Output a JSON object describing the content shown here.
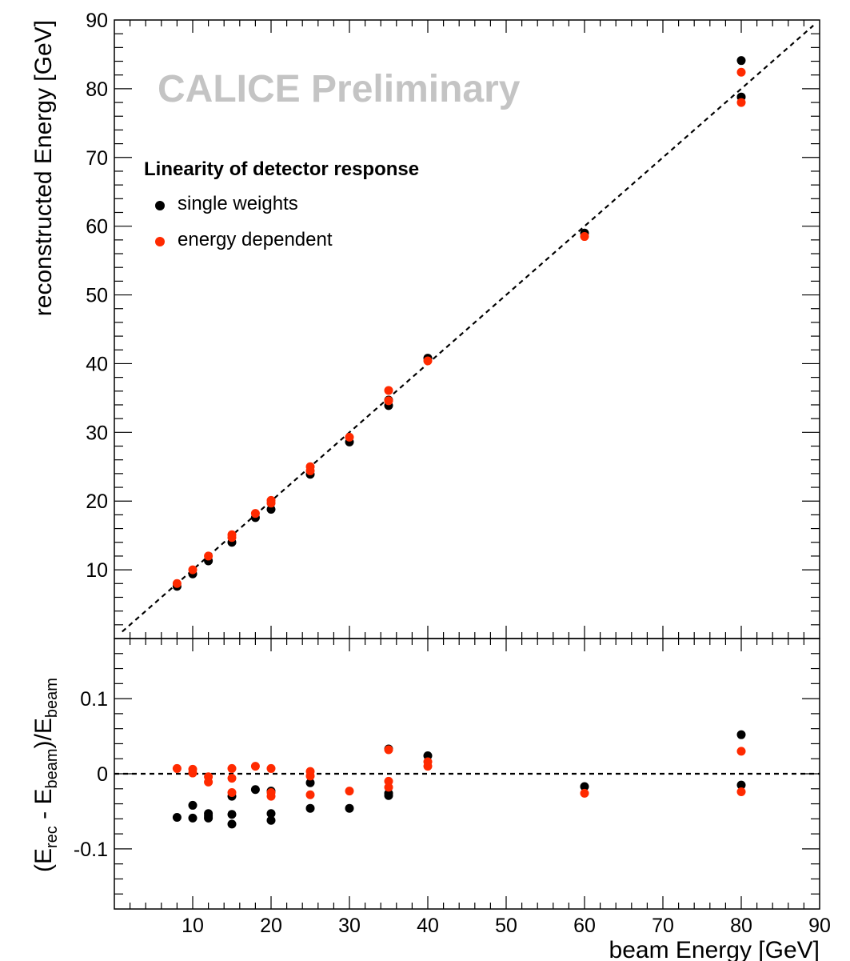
{
  "chart_data": [
    {
      "type": "scatter",
      "panel": "top",
      "ylabel": "reconstructed Energy [GeV]",
      "xlim": [
        0,
        90
      ],
      "ylim": [
        0,
        90
      ],
      "y_ticks": [
        10,
        20,
        30,
        40,
        50,
        60,
        70,
        80,
        90
      ],
      "reference_line": {
        "style": "dashed",
        "points": [
          [
            0,
            0
          ],
          [
            90,
            90
          ]
        ]
      },
      "annotation": "CALICE Preliminary",
      "legend": {
        "title": "Linearity of detector response",
        "placement": "top-left"
      },
      "series": [
        {
          "name": "single weights",
          "color": "#000000",
          "points": [
            [
              8,
              7.6
            ],
            [
              10,
              9.4
            ],
            [
              12,
              11.3
            ],
            [
              15,
              14.0
            ],
            [
              18,
              17.6
            ],
            [
              20,
              18.8
            ],
            [
              25,
              23.9
            ],
            [
              30,
              28.6
            ],
            [
              35,
              33.9
            ],
            [
              35,
              34.7
            ],
            [
              40,
              40.8
            ],
            [
              60,
              59.0
            ],
            [
              80,
              84.1
            ],
            [
              80,
              78.8
            ]
          ]
        },
        {
          "name": "energy dependent",
          "color": "#ff2a00",
          "points": [
            [
              8,
              8.0
            ],
            [
              10,
              10.0
            ],
            [
              12,
              12.0
            ],
            [
              15,
              14.7
            ],
            [
              15,
              15.1
            ],
            [
              18,
              18.2
            ],
            [
              20,
              19.7
            ],
            [
              20,
              20.1
            ],
            [
              25,
              24.4
            ],
            [
              25,
              25.0
            ],
            [
              30,
              29.3
            ],
            [
              35,
              36.1
            ],
            [
              35,
              34.6
            ],
            [
              40,
              40.4
            ],
            [
              60,
              58.5
            ],
            [
              80,
              82.4
            ],
            [
              80,
              78.0
            ]
          ]
        }
      ]
    },
    {
      "type": "scatter",
      "panel": "bottom",
      "xlabel": "beam Energy [GeV]",
      "ylabel": "(E_rec - E_beam)/E_beam",
      "xlim": [
        0,
        90
      ],
      "ylim": [
        -0.18,
        0.18
      ],
      "x_ticks": [
        10,
        20,
        30,
        40,
        50,
        60,
        70,
        80,
        90
      ],
      "y_ticks": [
        -0.1,
        0,
        0.1
      ],
      "y_tick_labels": [
        "-0.1",
        "0",
        "0.1"
      ],
      "reference_line": {
        "style": "dashed",
        "y": 0
      },
      "series": [
        {
          "name": "single weights",
          "color": "#000000",
          "points": [
            [
              8,
              -0.058
            ],
            [
              10,
              -0.042
            ],
            [
              10,
              -0.059
            ],
            [
              12,
              -0.053
            ],
            [
              12,
              -0.056
            ],
            [
              12,
              -0.059
            ],
            [
              15,
              -0.03
            ],
            [
              15,
              -0.054
            ],
            [
              15,
              -0.067
            ],
            [
              18,
              -0.021
            ],
            [
              20,
              -0.023
            ],
            [
              20,
              -0.053
            ],
            [
              20,
              -0.062
            ],
            [
              25,
              -0.012
            ],
            [
              25,
              -0.046
            ],
            [
              30,
              -0.046
            ],
            [
              35,
              0.033
            ],
            [
              35,
              -0.026
            ],
            [
              35,
              -0.029
            ],
            [
              40,
              0.024
            ],
            [
              60,
              -0.017
            ],
            [
              80,
              0.052
            ],
            [
              80,
              -0.015
            ]
          ]
        },
        {
          "name": "energy dependent",
          "color": "#ff2a00",
          "points": [
            [
              8,
              0.007
            ],
            [
              10,
              0.006
            ],
            [
              10,
              0.001
            ],
            [
              12,
              -0.004
            ],
            [
              12,
              -0.011
            ],
            [
              15,
              0.007
            ],
            [
              15,
              -0.006
            ],
            [
              15,
              -0.025
            ],
            [
              18,
              0.01
            ],
            [
              20,
              0.007
            ],
            [
              20,
              -0.025
            ],
            [
              20,
              -0.03
            ],
            [
              25,
              0.003
            ],
            [
              25,
              -0.003
            ],
            [
              25,
              -0.028
            ],
            [
              30,
              -0.023
            ],
            [
              35,
              0.032
            ],
            [
              35,
              -0.01
            ],
            [
              35,
              -0.018
            ],
            [
              40,
              0.016
            ],
            [
              40,
              0.01
            ],
            [
              60,
              -0.026
            ],
            [
              80,
              0.03
            ],
            [
              80,
              -0.024
            ]
          ]
        }
      ]
    }
  ]
}
